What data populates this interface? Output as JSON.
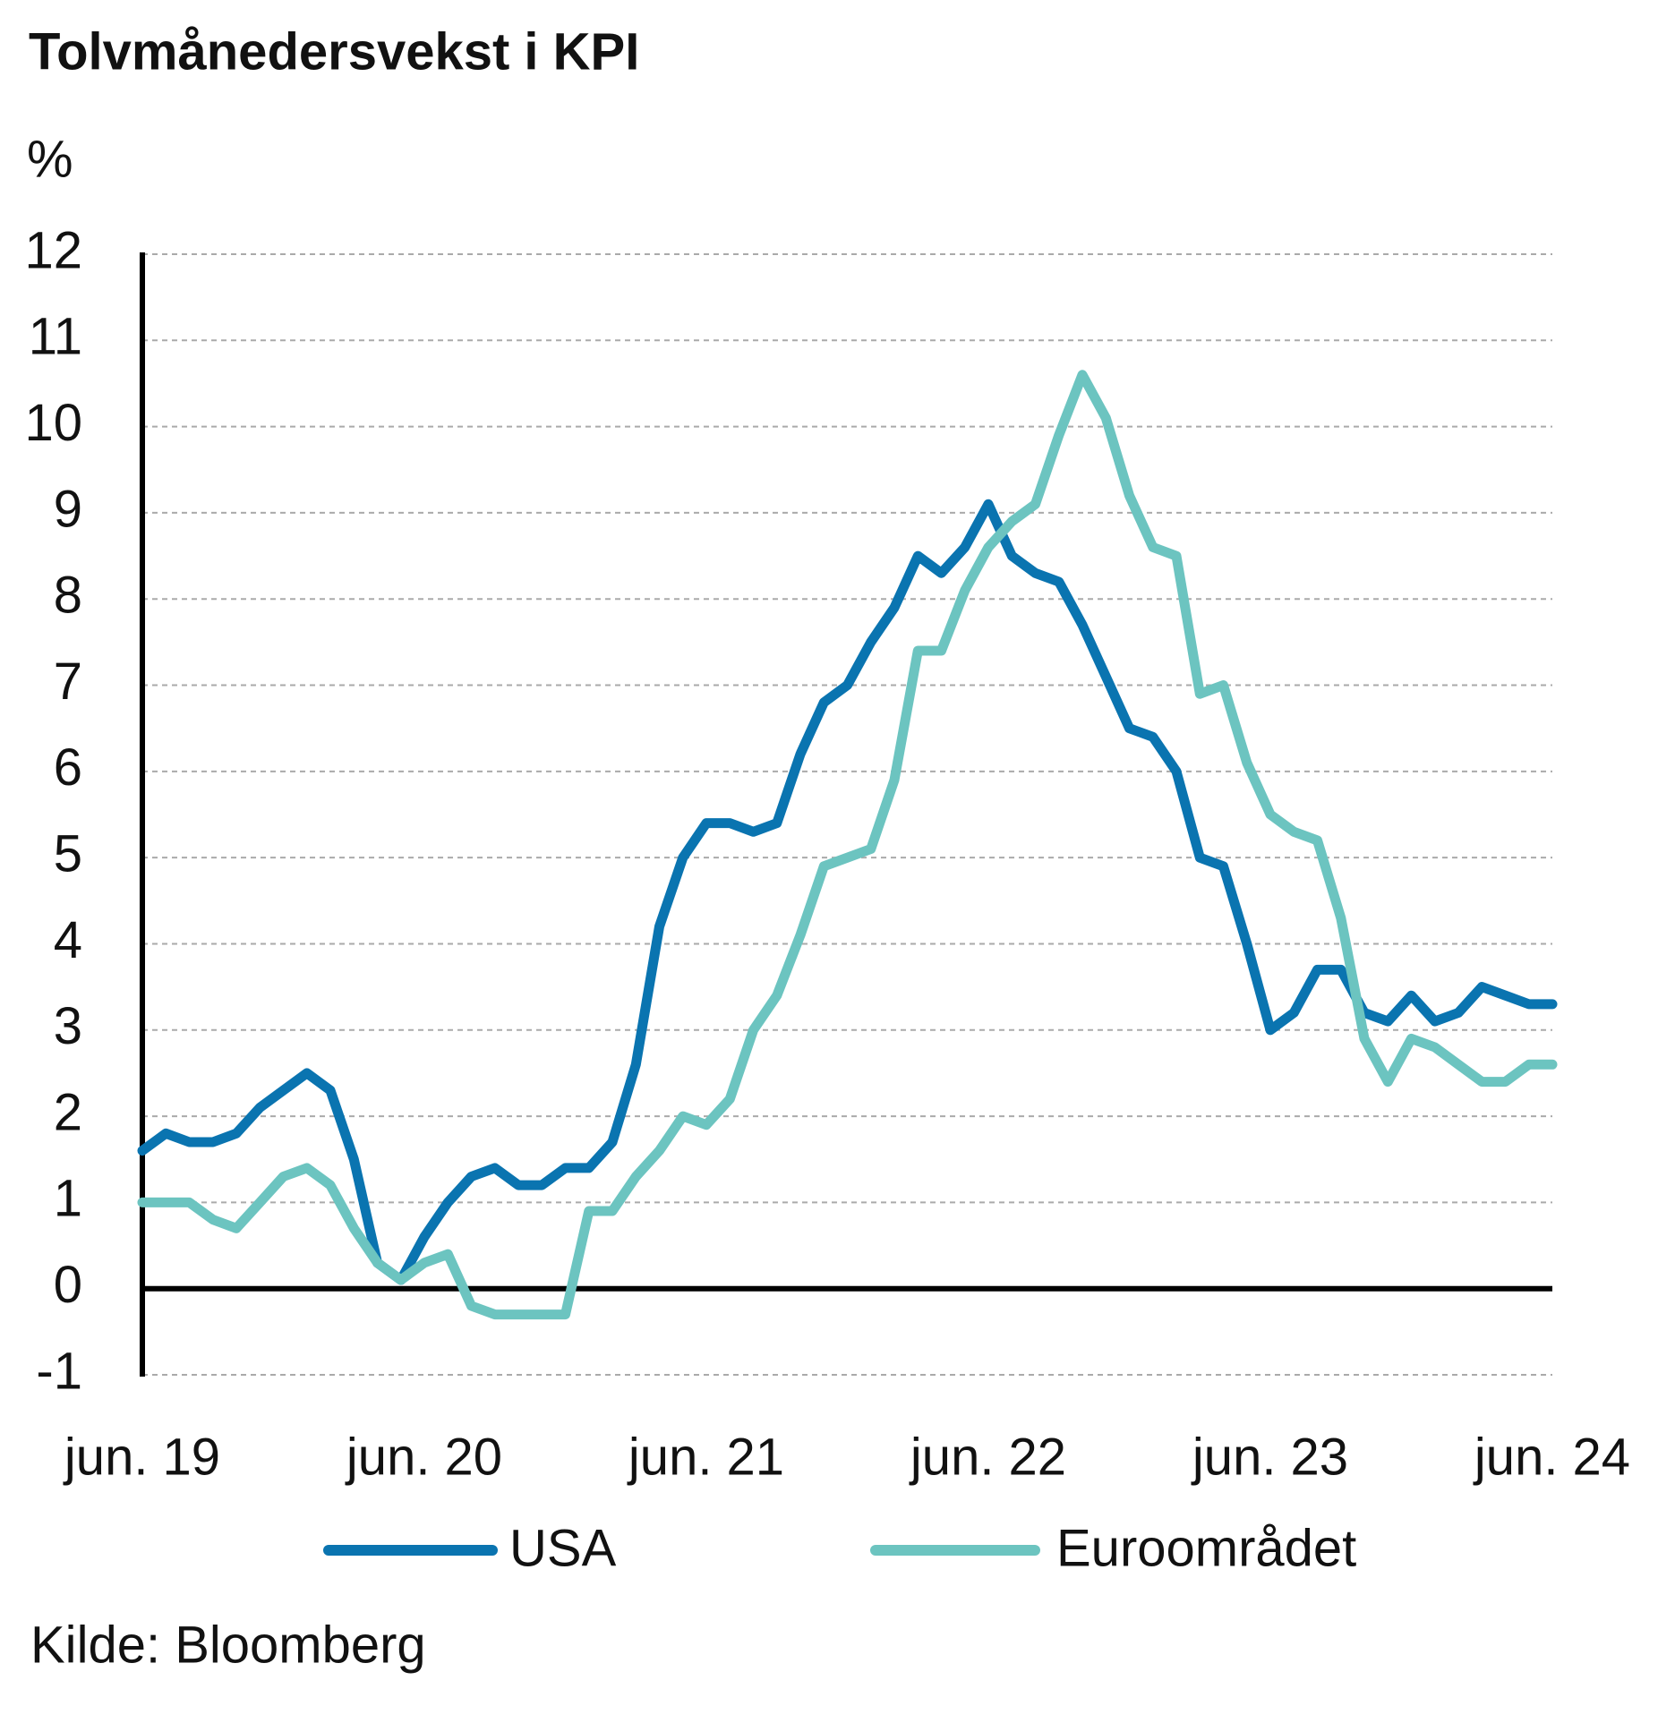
{
  "chart_data": {
    "type": "line",
    "title": "Tolvmånedersvekst i KPI",
    "y_label": "%",
    "source": "Kilde: Bloomberg",
    "categories": [
      "jun. 19",
      null,
      null,
      null,
      null,
      null,
      null,
      null,
      null,
      null,
      null,
      null,
      "jun. 20",
      null,
      null,
      null,
      null,
      null,
      null,
      null,
      null,
      null,
      null,
      null,
      "jun. 21",
      null,
      null,
      null,
      null,
      null,
      null,
      null,
      null,
      null,
      null,
      null,
      "jun. 22",
      null,
      null,
      null,
      null,
      null,
      null,
      null,
      null,
      null,
      null,
      null,
      "jun. 23",
      null,
      null,
      null,
      null,
      null,
      null,
      null,
      null,
      null,
      null,
      null,
      "jun. 24"
    ],
    "series": [
      {
        "name": "USA",
        "color": "#0a74b0",
        "values": [
          1.6,
          1.8,
          1.7,
          1.7,
          1.8,
          2.1,
          2.3,
          2.5,
          2.3,
          1.5,
          0.3,
          0.1,
          0.6,
          1.0,
          1.3,
          1.4,
          1.2,
          1.2,
          1.4,
          1.4,
          1.7,
          2.6,
          4.2,
          5.0,
          5.4,
          5.4,
          5.3,
          5.4,
          6.2,
          6.8,
          7.0,
          7.5,
          7.9,
          8.5,
          8.3,
          8.6,
          9.1,
          8.5,
          8.3,
          8.2,
          7.7,
          7.1,
          6.5,
          6.4,
          6.0,
          5.0,
          4.9,
          4.0,
          3.0,
          3.2,
          3.7,
          3.7,
          3.2,
          3.1,
          3.4,
          3.1,
          3.2,
          3.5,
          3.4,
          3.3,
          3.3
        ]
      },
      {
        "name": "Euroområdet",
        "color": "#6cc4c0",
        "values": [
          1.0,
          1.0,
          1.0,
          0.8,
          0.7,
          1.0,
          1.3,
          1.4,
          1.2,
          0.7,
          0.3,
          0.1,
          0.3,
          0.4,
          -0.2,
          -0.3,
          -0.3,
          -0.3,
          -0.3,
          0.9,
          0.9,
          1.3,
          1.6,
          2.0,
          1.9,
          2.2,
          3.0,
          3.4,
          4.1,
          4.9,
          5.0,
          5.1,
          5.9,
          7.4,
          7.4,
          8.1,
          8.6,
          8.9,
          9.1,
          9.9,
          10.6,
          10.1,
          9.2,
          8.6,
          8.5,
          6.9,
          7.0,
          6.1,
          5.5,
          5.3,
          5.2,
          4.3,
          2.9,
          2.4,
          2.9,
          2.8,
          2.6,
          2.4,
          2.4,
          2.6,
          2.6
        ]
      }
    ],
    "ylim": [
      -1,
      12
    ],
    "yticks": [
      -1,
      0,
      1,
      2,
      3,
      4,
      5,
      6,
      7,
      8,
      9,
      10,
      11,
      12
    ],
    "grid": true,
    "legend": "bottom"
  }
}
